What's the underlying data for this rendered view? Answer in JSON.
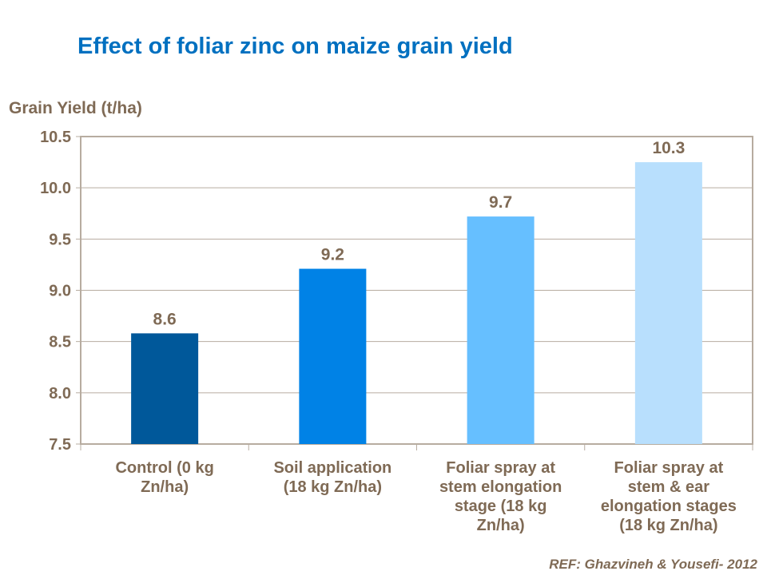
{
  "chart_data": {
    "type": "bar",
    "title": "Effect of foliar zinc on maize grain yield",
    "ylabel": "Grain Yield (t/ha)",
    "xlabel": "",
    "ylim": [
      7.5,
      10.5
    ],
    "yticks": [
      "7.5",
      "8.0",
      "8.5",
      "9.0",
      "9.5",
      "10.0",
      "10.5"
    ],
    "grid": true,
    "categories": [
      [
        "Control (0 kg",
        "Zn/ha)"
      ],
      [
        "Soil application",
        "(18 kg Zn/ha)"
      ],
      [
        "Foliar spray at",
        "stem elongation",
        "stage (18 kg",
        "Zn/ha)"
      ],
      [
        "Foliar spray at",
        "stem & ear",
        "elongation stages",
        "(18 kg Zn/ha)"
      ]
    ],
    "values": [
      8.58,
      9.21,
      9.72,
      10.25
    ],
    "data_labels": [
      "8.6",
      "9.2",
      "9.7",
      "10.3"
    ],
    "colors": [
      "#00589A",
      "#0082E6",
      "#66BFFF",
      "#B8DFFD"
    ],
    "reference": "REF: Ghazvineh & Yousefi- 2012"
  }
}
